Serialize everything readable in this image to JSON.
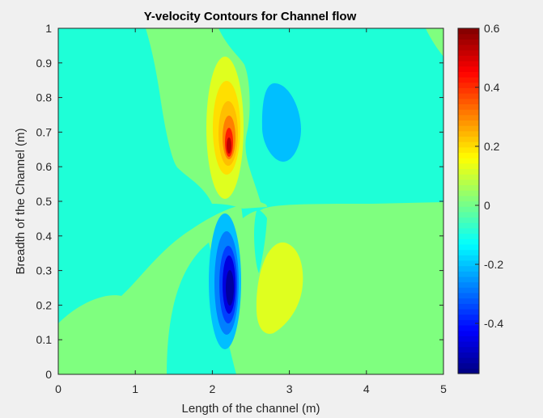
{
  "chart_data": {
    "type": "contour",
    "title": "Y-velocity Contours for Channel flow",
    "xlabel": "Length of the channel (m)",
    "ylabel": "Breadth of the Channel (m)",
    "xlim": [
      0,
      5
    ],
    "ylim": [
      0,
      1
    ],
    "x_ticks": [
      "0",
      "1",
      "2",
      "3",
      "4",
      "5"
    ],
    "y_ticks": [
      "0",
      "0.1",
      "0.2",
      "0.3",
      "0.4",
      "0.5",
      "0.6",
      "0.7",
      "0.8",
      "0.9",
      "1"
    ],
    "colorbar": {
      "colormap": "jet",
      "limits": [
        -0.57,
        0.6
      ],
      "ticks": [
        "0.6",
        "0.4",
        "0.2",
        "0",
        "-0.2",
        "-0.4"
      ],
      "tick_values": [
        0.6,
        0.4,
        0.2,
        0,
        -0.2,
        -0.4
      ]
    },
    "field_features": [
      {
        "label": "background",
        "value": -0.15
      },
      {
        "label": "upper positive lobe peak",
        "x": 2.23,
        "y": 0.65,
        "value": 0.6
      },
      {
        "label": "lower negative lobe peak",
        "x": 2.23,
        "y": 0.26,
        "value": -0.57
      },
      {
        "label": "upper-right negative lobe",
        "x": 2.9,
        "y": 0.72,
        "value": -0.2
      },
      {
        "label": "lower-right positive lobe",
        "x": 2.95,
        "y": 0.28,
        "value": 0.1
      },
      {
        "label": "lower near-zero region",
        "y_range": [
          0,
          0.4
        ],
        "value": 0.0
      },
      {
        "label": "upper near-zero band",
        "x_range": [
          1.2,
          2.8
        ],
        "value": 0.0
      }
    ],
    "grid": false,
    "legend": "none"
  }
}
